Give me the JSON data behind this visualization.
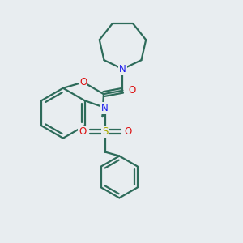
{
  "bg_color": "#e8edf0",
  "bond_color": "#2d6b5a",
  "N_color": "#1a1aee",
  "O_color": "#dd1111",
  "S_color": "#aaaa00",
  "linewidth": 1.6,
  "figsize": [
    3.0,
    3.0
  ],
  "dpi": 100,
  "xlim": [
    0,
    10
  ],
  "ylim": [
    0,
    10
  ]
}
